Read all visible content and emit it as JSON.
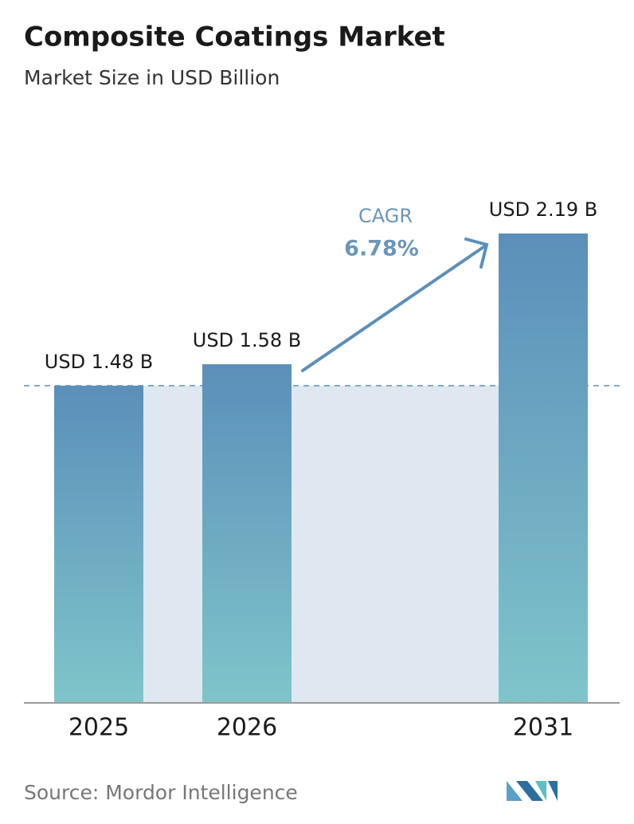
{
  "chart_data": {
    "type": "bar",
    "title": "Composite Coatings Market",
    "subtitle": "Market Size in USD Billion",
    "categories": [
      "2025",
      "2026",
      "2031"
    ],
    "values": [
      1.48,
      1.58,
      2.19
    ],
    "value_labels": [
      "USD 1.48 B",
      "USD 1.58 B",
      "USD 2.19 B"
    ],
    "colors": [
      "#5b8fba",
      "#7fc5ca"
    ],
    "annotation": {
      "label": "CAGR",
      "value": "6.78%"
    },
    "source": "Source: Mordor Intelligence"
  }
}
